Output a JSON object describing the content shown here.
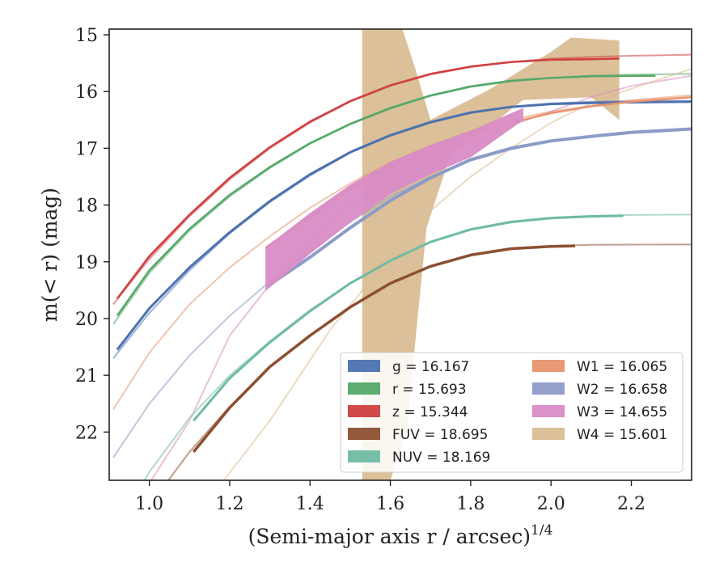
{
  "chart_data": {
    "type": "line",
    "xlabel": "(Semi-major axis r / arcsec)",
    "xlabel_exponent": "1/4",
    "ylabel": "m(< r) (mag)",
    "xlim": [
      0.9,
      2.35
    ],
    "ylim": [
      22.85,
      14.9
    ],
    "y_inverted": true,
    "grid": false,
    "legend_position": "lower-right",
    "x_ticks": [
      1.0,
      1.2,
      1.4,
      1.6,
      1.8,
      2.0,
      2.2
    ],
    "x_tick_labels": [
      "1.0",
      "1.2",
      "1.4",
      "1.6",
      "1.8",
      "2.0",
      "2.2"
    ],
    "y_ticks": [
      15,
      16,
      17,
      18,
      19,
      20,
      21,
      22
    ],
    "y_tick_labels": [
      "15",
      "16",
      "17",
      "18",
      "19",
      "20",
      "21",
      "22"
    ],
    "legend": [
      {
        "band": "g",
        "text": "g = 16.167",
        "color": "#4c72b0"
      },
      {
        "band": "r",
        "text": "r = 15.693",
        "color": "#55a868"
      },
      {
        "band": "z",
        "text": "z = 15.344",
        "color": "#d03f3f"
      },
      {
        "band": "FUV",
        "text": "FUV = 18.695",
        "color": "#8c5030"
      },
      {
        "band": "NUV",
        "text": "NUV = 18.169",
        "color": "#6fbba3"
      },
      {
        "band": "W1",
        "text": "W1 = 16.065",
        "color": "#e8946c"
      },
      {
        "band": "W2",
        "text": "W2 = 16.658",
        "color": "#8c9bc7"
      },
      {
        "band": "W3",
        "text": "W3 = 14.655",
        "color": "#d98cc5"
      },
      {
        "band": "W4",
        "text": "W4 = 15.601",
        "color": "#d9bd94"
      }
    ],
    "series": [
      {
        "band": "z",
        "color": "#d03f3f",
        "model_x": [
          0.91,
          1.0,
          1.1,
          1.2,
          1.3,
          1.4,
          1.5,
          1.6,
          1.7,
          1.8,
          1.9,
          2.0,
          2.1,
          2.2,
          2.35
        ],
        "model_y": [
          19.75,
          18.95,
          18.2,
          17.55,
          17.0,
          16.55,
          16.18,
          15.9,
          15.7,
          15.57,
          15.48,
          15.42,
          15.39,
          15.37,
          15.35
        ],
        "data_x": [
          0.92,
          1.0,
          1.1,
          1.2,
          1.3,
          1.4,
          1.5,
          1.6,
          1.7,
          1.8,
          1.9,
          2.0,
          2.1,
          2.17
        ],
        "data_y": [
          19.65,
          18.9,
          18.17,
          17.52,
          16.98,
          16.53,
          16.17,
          15.89,
          15.69,
          15.56,
          15.48,
          15.44,
          15.43,
          15.42
        ],
        "data_width": 2.5
      },
      {
        "band": "r",
        "color": "#55a868",
        "model_x": [
          0.91,
          1.0,
          1.1,
          1.2,
          1.3,
          1.4,
          1.5,
          1.6,
          1.7,
          1.8,
          1.9,
          2.0,
          2.1,
          2.2,
          2.35
        ],
        "model_y": [
          20.1,
          19.2,
          18.45,
          17.85,
          17.35,
          16.92,
          16.58,
          16.3,
          16.08,
          15.92,
          15.82,
          15.76,
          15.72,
          15.7,
          15.69
        ],
        "data_x": [
          0.92,
          1.0,
          1.1,
          1.2,
          1.3,
          1.4,
          1.5,
          1.6,
          1.7,
          1.8,
          1.9,
          2.0,
          2.1,
          2.26
        ],
        "data_y": [
          19.95,
          19.15,
          18.42,
          17.82,
          17.33,
          16.91,
          16.57,
          16.29,
          16.07,
          15.91,
          15.81,
          15.76,
          15.73,
          15.72
        ],
        "data_width": 2.5
      },
      {
        "band": "g",
        "color": "#4c72b0",
        "model_x": [
          0.91,
          1.0,
          1.1,
          1.2,
          1.3,
          1.4,
          1.5,
          1.6,
          1.7,
          1.8,
          1.9,
          2.0,
          2.1,
          2.2,
          2.35
        ],
        "model_y": [
          20.7,
          19.9,
          19.15,
          18.5,
          17.95,
          17.48,
          17.08,
          16.78,
          16.55,
          16.38,
          16.27,
          16.21,
          16.18,
          16.17,
          16.167
        ],
        "data_x": [
          0.92,
          1.0,
          1.1,
          1.2,
          1.3,
          1.4,
          1.5,
          1.6,
          1.7,
          1.8,
          1.9,
          2.0,
          2.1,
          2.2,
          2.35
        ],
        "data_y": [
          20.55,
          19.82,
          19.1,
          18.48,
          17.93,
          17.46,
          17.07,
          16.77,
          16.54,
          16.37,
          16.27,
          16.22,
          16.2,
          16.19,
          16.18
        ],
        "data_width": 3
      },
      {
        "band": "W1",
        "color": "#e8946c",
        "model_x": [
          0.91,
          1.0,
          1.1,
          1.2,
          1.3,
          1.4,
          1.5,
          1.6,
          1.7,
          1.8,
          1.9,
          2.0,
          2.1,
          2.2,
          2.35
        ],
        "model_y": [
          21.6,
          20.6,
          19.75,
          19.1,
          18.55,
          18.05,
          17.62,
          17.25,
          16.95,
          16.7,
          16.5,
          16.35,
          16.25,
          16.15,
          16.065
        ],
        "data_x": [
          1.29,
          1.4,
          1.5,
          1.6,
          1.7,
          1.8,
          1.9,
          2.0,
          2.1,
          2.2,
          2.35
        ],
        "data_y": [
          18.75,
          18.2,
          17.72,
          17.32,
          17.0,
          16.75,
          16.55,
          16.38,
          16.26,
          16.18,
          16.1
        ],
        "data_width": 2.5
      },
      {
        "band": "W2",
        "color": "#8c9bc7",
        "model_x": [
          0.91,
          1.0,
          1.1,
          1.2,
          1.3,
          1.4,
          1.5,
          1.6,
          1.7,
          1.8,
          1.9,
          2.0,
          2.1,
          2.2,
          2.35
        ],
        "model_y": [
          22.45,
          21.5,
          20.65,
          19.95,
          19.35,
          18.8,
          18.3,
          17.85,
          17.5,
          17.22,
          17.02,
          16.88,
          16.78,
          16.72,
          16.67
        ],
        "data_x": [
          1.29,
          1.4,
          1.5,
          1.6,
          1.7,
          1.8,
          1.9,
          2.0,
          2.1,
          2.2,
          2.35
        ],
        "data_y": [
          19.45,
          18.92,
          18.4,
          17.92,
          17.52,
          17.2,
          17.0,
          16.87,
          16.79,
          16.72,
          16.66
        ],
        "data_width": 4
      },
      {
        "band": "W3",
        "color": "#d98cc5",
        "model_x": [
          1.0,
          1.1,
          1.2,
          1.3,
          1.4,
          1.5,
          1.6,
          1.7,
          1.8,
          1.9,
          2.0,
          2.1,
          2.2,
          2.35
        ],
        "model_y": [
          22.9,
          21.8,
          20.3,
          19.4,
          18.6,
          18.0,
          17.55,
          17.2,
          16.9,
          16.6,
          16.35,
          16.1,
          15.9,
          15.72
        ],
        "band_upper_x": [
          1.29,
          1.4,
          1.5,
          1.6,
          1.7,
          1.8,
          1.93
        ],
        "band_upper_y": [
          18.75,
          18.15,
          17.65,
          17.25,
          16.95,
          16.7,
          16.3
        ],
        "band_lower_x": [
          1.29,
          1.4,
          1.5,
          1.6,
          1.7,
          1.8,
          1.93
        ],
        "band_lower_y": [
          19.5,
          18.85,
          18.3,
          17.8,
          17.45,
          17.15,
          16.5
        ]
      },
      {
        "band": "W4",
        "color": "#d9bd94",
        "model_x": [
          1.18,
          1.3,
          1.45,
          1.6,
          1.7,
          1.8,
          1.9,
          2.0,
          2.1,
          2.2,
          2.35
        ],
        "model_y": [
          22.9,
          21.8,
          20.2,
          18.9,
          18.1,
          17.5,
          17.0,
          16.55,
          16.2,
          15.95,
          15.6
        ],
        "band_polygon_x": [
          1.53,
          1.63,
          1.66,
          1.7,
          1.85,
          2.0,
          2.05,
          2.17,
          2.17,
          2.1,
          1.93,
          1.85,
          1.75,
          1.69,
          1.64,
          1.6,
          1.53
        ],
        "band_polygon_y": [
          14.9,
          14.9,
          15.55,
          16.5,
          15.95,
          15.3,
          15.05,
          15.1,
          16.5,
          16.1,
          16.15,
          16.6,
          17.1,
          18.4,
          22.0,
          22.85,
          22.85
        ]
      },
      {
        "band": "NUV",
        "color": "#6fbba3",
        "model_x": [
          0.91,
          1.0,
          1.1,
          1.2,
          1.3,
          1.4,
          1.5,
          1.6,
          1.7,
          1.8,
          1.9,
          2.0,
          2.1,
          2.2,
          2.35
        ],
        "model_y": [
          23.8,
          22.7,
          21.75,
          21.0,
          20.4,
          19.85,
          19.38,
          18.98,
          18.65,
          18.42,
          18.29,
          18.22,
          18.19,
          18.175,
          18.169
        ],
        "data_x": [
          1.11,
          1.2,
          1.3,
          1.4,
          1.5,
          1.6,
          1.7,
          1.8,
          1.9,
          2.0,
          2.1,
          2.18
        ],
        "data_y": [
          21.8,
          21.05,
          20.42,
          19.87,
          19.38,
          18.98,
          18.65,
          18.43,
          18.3,
          18.23,
          18.2,
          18.19
        ],
        "data_width": 3
      },
      {
        "band": "FUV",
        "color": "#8c5030",
        "model_x": [
          0.91,
          1.0,
          1.1,
          1.2,
          1.3,
          1.4,
          1.5,
          1.6,
          1.7,
          1.8,
          1.9,
          2.0,
          2.1,
          2.2,
          2.35
        ],
        "model_y": [
          24.5,
          23.3,
          22.35,
          21.55,
          20.85,
          20.3,
          19.8,
          19.38,
          19.08,
          18.88,
          18.77,
          18.72,
          18.7,
          18.697,
          18.695
        ],
        "data_x": [
          1.11,
          1.2,
          1.3,
          1.4,
          1.5,
          1.6,
          1.7,
          1.8,
          1.9,
          2.0,
          2.06
        ],
        "data_y": [
          22.35,
          21.57,
          20.85,
          20.3,
          19.8,
          19.38,
          19.08,
          18.88,
          18.77,
          18.73,
          18.72
        ],
        "data_width": 3.5
      }
    ]
  }
}
